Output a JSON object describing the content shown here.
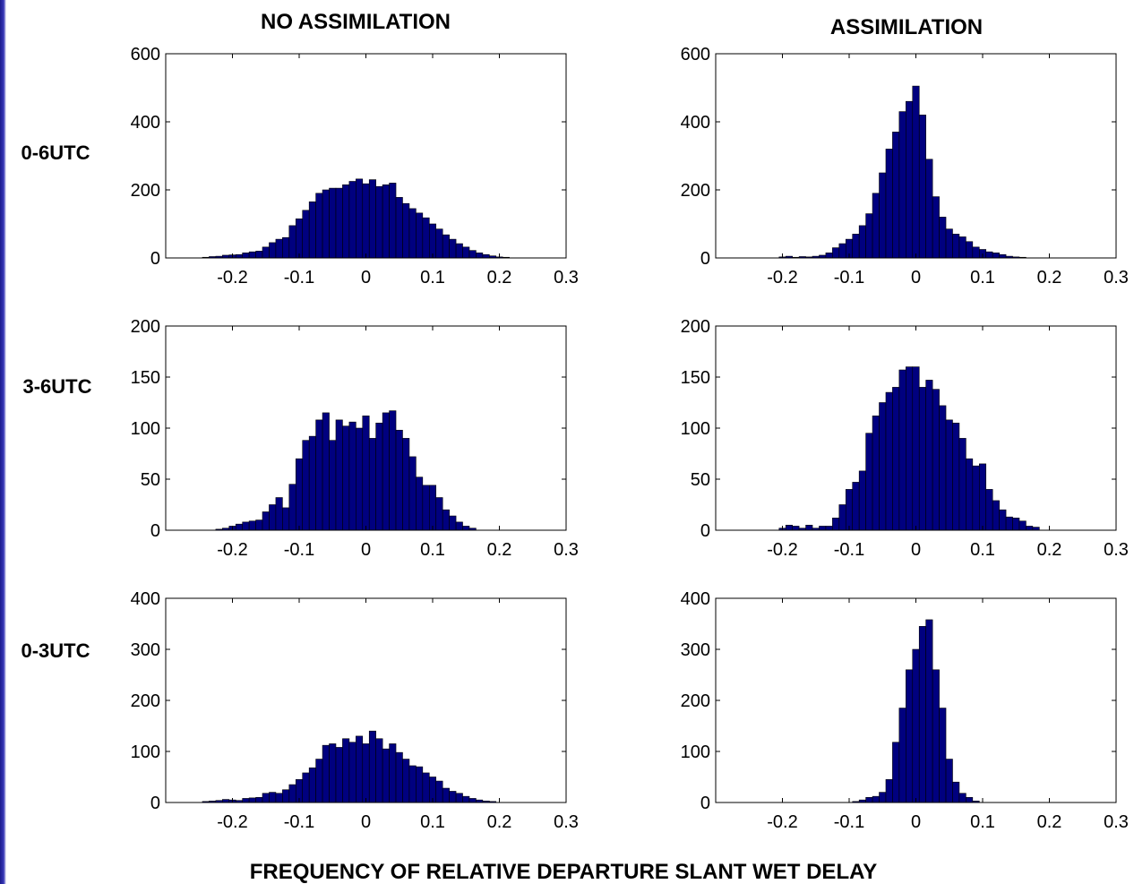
{
  "figure": {
    "column_titles": [
      "NO ASSIMILATION",
      "ASSIMILATION"
    ],
    "row_labels": [
      "0-6UTC",
      "3-6UTC",
      "0-3UTC"
    ],
    "xlabel": "FREQUENCY OF RELATIVE DEPARTURE SLANT WET DELAY",
    "bar_color": "#00007f",
    "edge_color": "#000000"
  },
  "chart_data": [
    {
      "type": "bar",
      "row_label": "0-6UTC",
      "column_title": "NO ASSIMILATION",
      "xlim": [
        -0.3,
        0.3
      ],
      "ylim": [
        0,
        600
      ],
      "xticks": [
        -0.2,
        -0.1,
        0,
        0.1,
        0.2,
        0.3
      ],
      "xtick_labels": [
        "-0.2",
        "-0.1",
        "0",
        "0.1",
        "0.2",
        "0.3"
      ],
      "yticks": [
        0,
        200,
        400,
        600
      ],
      "ytick_labels": [
        "0",
        "200",
        "400",
        "600"
      ],
      "bin_width": 0.01,
      "bin_start": -0.245,
      "values": [
        2,
        4,
        5,
        8,
        9,
        10,
        15,
        18,
        20,
        32,
        45,
        55,
        60,
        95,
        115,
        140,
        165,
        190,
        200,
        205,
        205,
        215,
        225,
        232,
        218,
        230,
        210,
        215,
        220,
        178,
        160,
        145,
        132,
        118,
        100,
        85,
        68,
        55,
        42,
        32,
        22,
        15,
        10,
        6,
        3,
        2
      ]
    },
    {
      "type": "bar",
      "row_label": "0-6UTC",
      "column_title": "ASSIMILATION",
      "xlim": [
        -0.3,
        0.3
      ],
      "ylim": [
        0,
        600
      ],
      "xticks": [
        -0.2,
        -0.1,
        0,
        0.1,
        0.2,
        0.3
      ],
      "xtick_labels": [
        "-0.2",
        "-0.1",
        "0",
        "0.1",
        "0.2",
        "0.3"
      ],
      "yticks": [
        0,
        200,
        400,
        600
      ],
      "ytick_labels": [
        "0",
        "200",
        "400",
        "600"
      ],
      "bin_width": 0.01,
      "bin_start": -0.205,
      "values": [
        3,
        5,
        2,
        4,
        3,
        5,
        8,
        15,
        30,
        42,
        55,
        70,
        95,
        130,
        190,
        250,
        320,
        370,
        430,
        460,
        505,
        420,
        290,
        180,
        120,
        85,
        70,
        62,
        48,
        32,
        25,
        18,
        15,
        10,
        5,
        3,
        2
      ]
    },
    {
      "type": "bar",
      "row_label": "3-6UTC",
      "column_title": "NO ASSIMILATION",
      "xlim": [
        -0.3,
        0.3
      ],
      "ylim": [
        0,
        200
      ],
      "xticks": [
        -0.2,
        -0.1,
        0,
        0.1,
        0.2,
        0.3
      ],
      "xtick_labels": [
        "-0.2",
        "-0.1",
        "0",
        "0.1",
        "0.2",
        "0.3"
      ],
      "yticks": [
        0,
        50,
        100,
        150,
        200
      ],
      "ytick_labels": [
        "0",
        "50",
        "100",
        "150",
        "200"
      ],
      "bin_width": 0.01,
      "bin_start": -0.225,
      "values": [
        1,
        2,
        4,
        6,
        8,
        9,
        10,
        18,
        25,
        32,
        22,
        45,
        70,
        88,
        92,
        108,
        115,
        88,
        108,
        102,
        106,
        100,
        112,
        90,
        105,
        115,
        117,
        98,
        90,
        72,
        52,
        44,
        44,
        32,
        20,
        14,
        8,
        4,
        2
      ]
    },
    {
      "type": "bar",
      "row_label": "3-6UTC",
      "column_title": "ASSIMILATION",
      "xlim": [
        -0.3,
        0.3
      ],
      "ylim": [
        0,
        200
      ],
      "xticks": [
        -0.2,
        -0.1,
        0,
        0.1,
        0.2,
        0.3
      ],
      "xtick_labels": [
        "-0.2",
        "-0.1",
        "0",
        "0.1",
        "0.2",
        "0.3"
      ],
      "yticks": [
        0,
        50,
        100,
        150,
        200
      ],
      "ytick_labels": [
        "0",
        "50",
        "100",
        "150",
        "200"
      ],
      "bin_width": 0.01,
      "bin_start": -0.205,
      "values": [
        2,
        5,
        4,
        2,
        5,
        2,
        4,
        4,
        12,
        25,
        40,
        47,
        58,
        95,
        112,
        125,
        135,
        140,
        157,
        160,
        160,
        140,
        147,
        138,
        122,
        108,
        105,
        90,
        70,
        63,
        65,
        40,
        29,
        20,
        13,
        12,
        9,
        4,
        3
      ]
    },
    {
      "type": "bar",
      "row_label": "0-3UTC",
      "column_title": "NO ASSIMILATION",
      "xlim": [
        -0.3,
        0.3
      ],
      "ylim": [
        0,
        400
      ],
      "xticks": [
        -0.2,
        -0.1,
        0,
        0.1,
        0.2,
        0.3
      ],
      "xtick_labels": [
        "-0.2",
        "-0.1",
        "0",
        "0.1",
        "0.2",
        "0.3"
      ],
      "yticks": [
        0,
        100,
        200,
        300,
        400
      ],
      "ytick_labels": [
        "0",
        "100",
        "200",
        "300",
        "400"
      ],
      "bin_width": 0.01,
      "bin_start": -0.245,
      "values": [
        2,
        3,
        4,
        6,
        5,
        4,
        8,
        9,
        10,
        18,
        20,
        18,
        25,
        35,
        45,
        58,
        68,
        85,
        112,
        115,
        108,
        125,
        118,
        130,
        115,
        140,
        125,
        105,
        115,
        98,
        85,
        72,
        70,
        58,
        50,
        42,
        28,
        22,
        18,
        12,
        8,
        5,
        3,
        2
      ]
    },
    {
      "type": "bar",
      "row_label": "0-3UTC",
      "column_title": "ASSIMILATION",
      "xlim": [
        -0.3,
        0.3
      ],
      "ylim": [
        0,
        400
      ],
      "xticks": [
        -0.2,
        -0.1,
        0,
        0.1,
        0.2,
        0.3
      ],
      "xtick_labels": [
        "-0.2",
        "-0.1",
        "0",
        "0.1",
        "0.2",
        "0.3"
      ],
      "yticks": [
        0,
        100,
        200,
        300,
        400
      ],
      "ytick_labels": [
        "0",
        "100",
        "200",
        "300",
        "400"
      ],
      "bin_width": 0.01,
      "bin_start": -0.095,
      "values": [
        2,
        5,
        10,
        12,
        20,
        45,
        118,
        185,
        260,
        300,
        345,
        358,
        260,
        185,
        85,
        40,
        18,
        10,
        3
      ]
    }
  ]
}
